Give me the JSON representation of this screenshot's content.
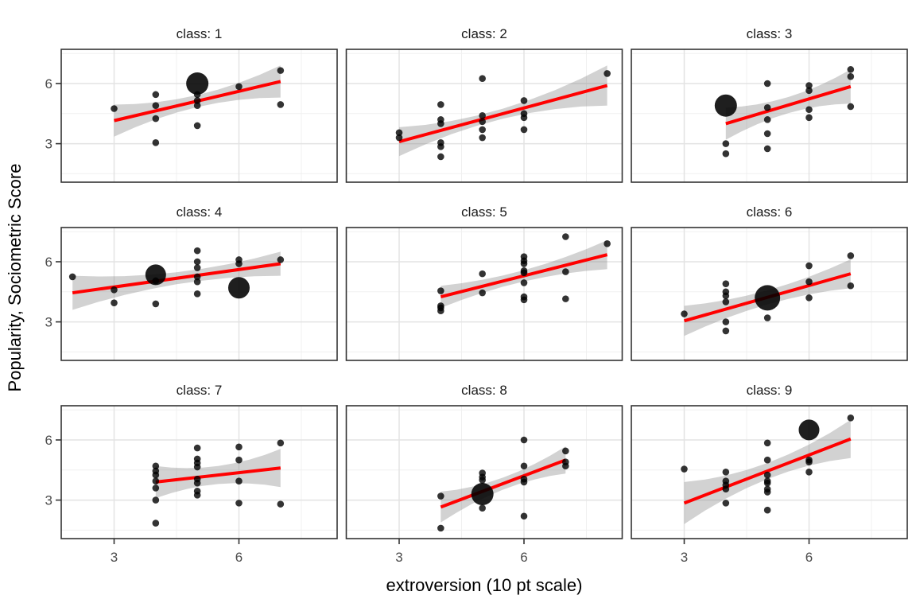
{
  "chart_data": {
    "type": "scatter",
    "title": "",
    "xlabel": "extroversion (10 pt scale)",
    "ylabel": "Popularity, Sociometric Score",
    "x_ticks": [
      3,
      6
    ],
    "y_ticks": [
      6,
      3
    ],
    "x_minor_gridlines": [
      4.5,
      7.5
    ],
    "y_minor_gridlines": [
      1.5,
      4.5,
      7.5
    ],
    "xlim": [
      1.73,
      8.36
    ],
    "ylim": [
      1.07,
      7.66
    ],
    "grid": "on",
    "legend": "none",
    "layout": "3x3 facet grid, y tick labels on left column only, x tick labels on bottom row only",
    "colors": {
      "regression_line": "#ff0000",
      "confidence_band": "rgba(125,125,125,0.35)",
      "point": "#000000",
      "panel_border": "#333333",
      "major_grid": "#e3e3e3",
      "minor_grid": "#f0f0f0",
      "tick_label": "#4d4d4d",
      "facet_label": "#1a1a1a"
    },
    "facets": [
      {
        "label": "class: 1",
        "points": [
          [
            3,
            4.75
          ],
          [
            4,
            5.45
          ],
          [
            4,
            4.9
          ],
          [
            4,
            4.25
          ],
          [
            4,
            3.05
          ],
          [
            5,
            5.45
          ],
          [
            5,
            5.15
          ],
          [
            5,
            4.9
          ],
          [
            5,
            3.9
          ],
          [
            6,
            5.85
          ],
          [
            7,
            6.65
          ],
          [
            7,
            4.95
          ]
        ],
        "big_points": [
          [
            5,
            6.0,
            14
          ]
        ],
        "line": {
          "x0": 3.0,
          "y0": 4.15,
          "x1": 7.0,
          "y1": 6.1
        },
        "band": {
          "hw0": 0.8,
          "hwm": 0.3,
          "hw1": 0.8
        }
      },
      {
        "label": "class: 2",
        "points": [
          [
            3,
            3.55
          ],
          [
            3,
            3.3
          ],
          [
            4,
            4.95
          ],
          [
            4,
            4.2
          ],
          [
            4,
            4.0
          ],
          [
            4,
            3.05
          ],
          [
            4,
            2.85
          ],
          [
            4,
            2.35
          ],
          [
            5,
            6.25
          ],
          [
            5,
            4.4
          ],
          [
            5,
            4.1
          ],
          [
            5,
            3.7
          ],
          [
            5,
            3.3
          ],
          [
            6,
            5.15
          ],
          [
            6,
            4.5
          ],
          [
            6,
            4.3
          ],
          [
            6,
            3.7
          ],
          [
            8,
            6.5
          ]
        ],
        "big_points": [],
        "line": {
          "x0": 3.0,
          "y0": 3.1,
          "x1": 8.0,
          "y1": 5.9
        },
        "band": {
          "hw0": 0.72,
          "hwm": 0.25,
          "hw1": 1.0
        }
      },
      {
        "label": "class: 3",
        "points": [
          [
            4,
            3.0
          ],
          [
            4,
            2.5
          ],
          [
            5,
            6.0
          ],
          [
            5,
            4.8
          ],
          [
            5,
            4.2
          ],
          [
            5,
            3.5
          ],
          [
            5,
            2.75
          ],
          [
            6,
            5.9
          ],
          [
            6,
            5.65
          ],
          [
            6,
            4.7
          ],
          [
            6,
            4.3
          ],
          [
            7,
            6.7
          ],
          [
            7,
            6.35
          ],
          [
            7,
            4.85
          ]
        ],
        "big_points": [
          [
            4,
            4.9,
            14
          ]
        ],
        "line": {
          "x0": 4.0,
          "y0": 4.0,
          "x1": 7.0,
          "y1": 5.85
        },
        "band": {
          "hw0": 0.8,
          "hwm": 0.4,
          "hw1": 0.85
        }
      },
      {
        "label": "class: 4",
        "points": [
          [
            2,
            5.25
          ],
          [
            3,
            4.6
          ],
          [
            3,
            3.95
          ],
          [
            4,
            5.05
          ],
          [
            4,
            3.9
          ],
          [
            5,
            6.55
          ],
          [
            5,
            6.0
          ],
          [
            5,
            5.7
          ],
          [
            5,
            5.25
          ],
          [
            5,
            5.0
          ],
          [
            5,
            4.4
          ],
          [
            6,
            6.1
          ],
          [
            6,
            5.9
          ],
          [
            7,
            6.1
          ]
        ],
        "big_points": [
          [
            4,
            5.35,
            13
          ],
          [
            6,
            4.7,
            13.5
          ]
        ],
        "line": {
          "x0": 2.0,
          "y0": 4.45,
          "x1": 7.0,
          "y1": 5.9
        },
        "band": {
          "hw0": 0.85,
          "hwm": 0.3,
          "hw1": 0.6
        }
      },
      {
        "label": "class: 5",
        "points": [
          [
            4,
            4.55
          ],
          [
            4,
            3.8
          ],
          [
            4,
            3.7
          ],
          [
            4,
            3.55
          ],
          [
            5,
            5.4
          ],
          [
            5,
            4.45
          ],
          [
            6,
            6.25
          ],
          [
            6,
            6.05
          ],
          [
            6,
            5.9
          ],
          [
            6,
            5.55
          ],
          [
            6,
            5.45
          ],
          [
            6,
            4.95
          ],
          [
            6,
            4.25
          ],
          [
            6,
            4.1
          ],
          [
            7,
            7.25
          ],
          [
            7,
            5.5
          ],
          [
            7,
            4.15
          ],
          [
            8,
            6.9
          ]
        ],
        "big_points": [],
        "line": {
          "x0": 4.0,
          "y0": 4.25,
          "x1": 8.0,
          "y1": 6.35
        },
        "band": {
          "hw0": 0.55,
          "hwm": 0.28,
          "hw1": 0.72
        }
      },
      {
        "label": "class: 6",
        "points": [
          [
            3,
            3.4
          ],
          [
            4,
            4.9
          ],
          [
            4,
            4.5
          ],
          [
            4,
            4.3
          ],
          [
            4,
            4.0
          ],
          [
            4,
            3.0
          ],
          [
            4,
            2.55
          ],
          [
            5,
            3.2
          ],
          [
            6,
            5.8
          ],
          [
            6,
            5.0
          ],
          [
            6,
            4.2
          ],
          [
            7,
            6.3
          ],
          [
            7,
            4.8
          ]
        ],
        "big_points": [
          [
            5,
            4.2,
            16
          ]
        ],
        "line": {
          "x0": 3.0,
          "y0": 3.05,
          "x1": 7.0,
          "y1": 5.4
        },
        "band": {
          "hw0": 0.75,
          "hwm": 0.35,
          "hw1": 0.72
        }
      },
      {
        "label": "class: 7",
        "points": [
          [
            4,
            4.7
          ],
          [
            4,
            4.45
          ],
          [
            4,
            4.25
          ],
          [
            4,
            3.95
          ],
          [
            4,
            3.6
          ],
          [
            4,
            3.0
          ],
          [
            4,
            1.85
          ],
          [
            5,
            5.6
          ],
          [
            5,
            5.05
          ],
          [
            5,
            4.85
          ],
          [
            5,
            4.65
          ],
          [
            5,
            4.05
          ],
          [
            5,
            3.85
          ],
          [
            5,
            3.45
          ],
          [
            5,
            3.25
          ],
          [
            6,
            5.65
          ],
          [
            6,
            5.0
          ],
          [
            6,
            3.95
          ],
          [
            6,
            2.85
          ],
          [
            7,
            5.85
          ],
          [
            7,
            2.8
          ]
        ],
        "big_points": [],
        "line": {
          "x0": 4.0,
          "y0": 3.9,
          "x1": 7.0,
          "y1": 4.6
        },
        "band": {
          "hw0": 0.8,
          "hwm": 0.45,
          "hw1": 0.95
        }
      },
      {
        "label": "class: 8",
        "points": [
          [
            4,
            3.2
          ],
          [
            4,
            1.6
          ],
          [
            5,
            4.35
          ],
          [
            5,
            4.15
          ],
          [
            5,
            4.0
          ],
          [
            5,
            2.6
          ],
          [
            6,
            6.0
          ],
          [
            6,
            4.7
          ],
          [
            6,
            4.05
          ],
          [
            6,
            3.9
          ],
          [
            6,
            2.2
          ],
          [
            7,
            5.45
          ],
          [
            7,
            4.9
          ],
          [
            7,
            4.7
          ]
        ],
        "big_points": [
          [
            5,
            3.3,
            14
          ]
        ],
        "line": {
          "x0": 4.0,
          "y0": 2.65,
          "x1": 7.0,
          "y1": 5.0
        },
        "band": {
          "hw0": 0.77,
          "hwm": 0.3,
          "hw1": 0.68
        }
      },
      {
        "label": "class: 9",
        "points": [
          [
            3,
            4.55
          ],
          [
            4,
            4.4
          ],
          [
            4,
            3.95
          ],
          [
            4,
            3.75
          ],
          [
            4,
            3.55
          ],
          [
            4,
            2.85
          ],
          [
            5,
            5.85
          ],
          [
            5,
            5.0
          ],
          [
            5,
            4.25
          ],
          [
            5,
            3.95
          ],
          [
            5,
            3.85
          ],
          [
            5,
            3.55
          ],
          [
            5,
            3.4
          ],
          [
            5,
            2.5
          ],
          [
            6,
            5.0
          ],
          [
            6,
            4.9
          ],
          [
            6,
            4.4
          ],
          [
            7,
            7.1
          ]
        ],
        "big_points": [
          [
            6,
            6.5,
            13
          ]
        ],
        "line": {
          "x0": 3.0,
          "y0": 2.85,
          "x1": 7.0,
          "y1": 6.05
        },
        "band": {
          "hw0": 1.05,
          "hwm": 0.4,
          "hw1": 0.95
        }
      }
    ]
  }
}
